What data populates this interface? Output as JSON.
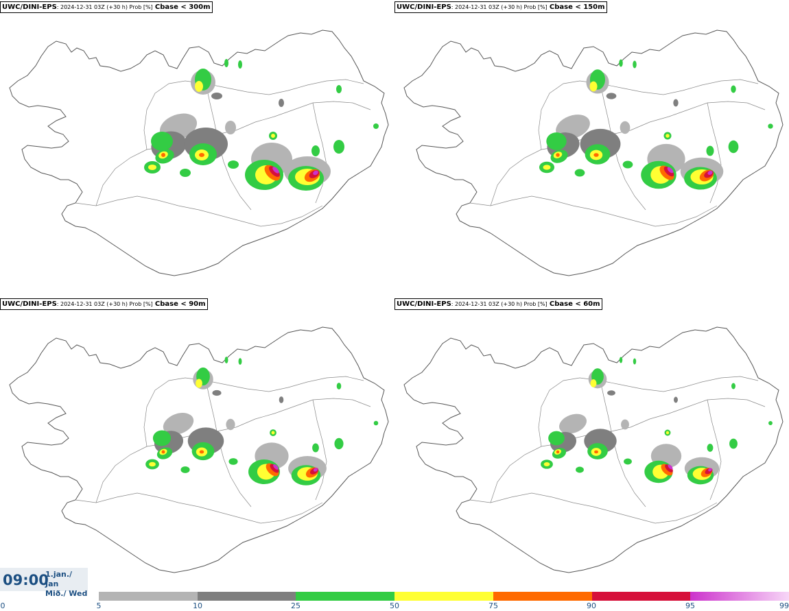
{
  "panels": [
    {
      "model": "UWC/DINI-EPS",
      "meta": ": 2024-12-31 03Z (+30 h) Prob [%]",
      "variable": "Cbase < 300m"
    },
    {
      "model": "UWC/DINI-EPS",
      "meta": ": 2024-12-31 03Z (+30 h) Prob [%]",
      "variable": "Cbase < 150m"
    },
    {
      "model": "UWC/DINI-EPS",
      "meta": ": 2024-12-31 03Z (+30 h) Prob [%]",
      "variable": "Cbase < 90m"
    },
    {
      "model": "UWC/DINI-EPS",
      "meta": ": 2024-12-31 03Z (+30 h) Prob [%]",
      "variable": "Cbase < 60m"
    }
  ],
  "valid_time": {
    "hour": "09:00",
    "date_line1": "1.jan./ Jan",
    "date_line2": "Mið./ Wed"
  },
  "legend": {
    "ticks": [
      "0",
      "5",
      "10",
      "25",
      "50",
      "75",
      "90",
      "95",
      "99"
    ],
    "colors": [
      "#b4b4b4",
      "#7f7f7f",
      "#33cc44",
      "#ffff33",
      "#ff6a00",
      "#d6103a",
      "#cc33cc"
    ],
    "last_gradient_end": "#f7d6f7"
  }
}
